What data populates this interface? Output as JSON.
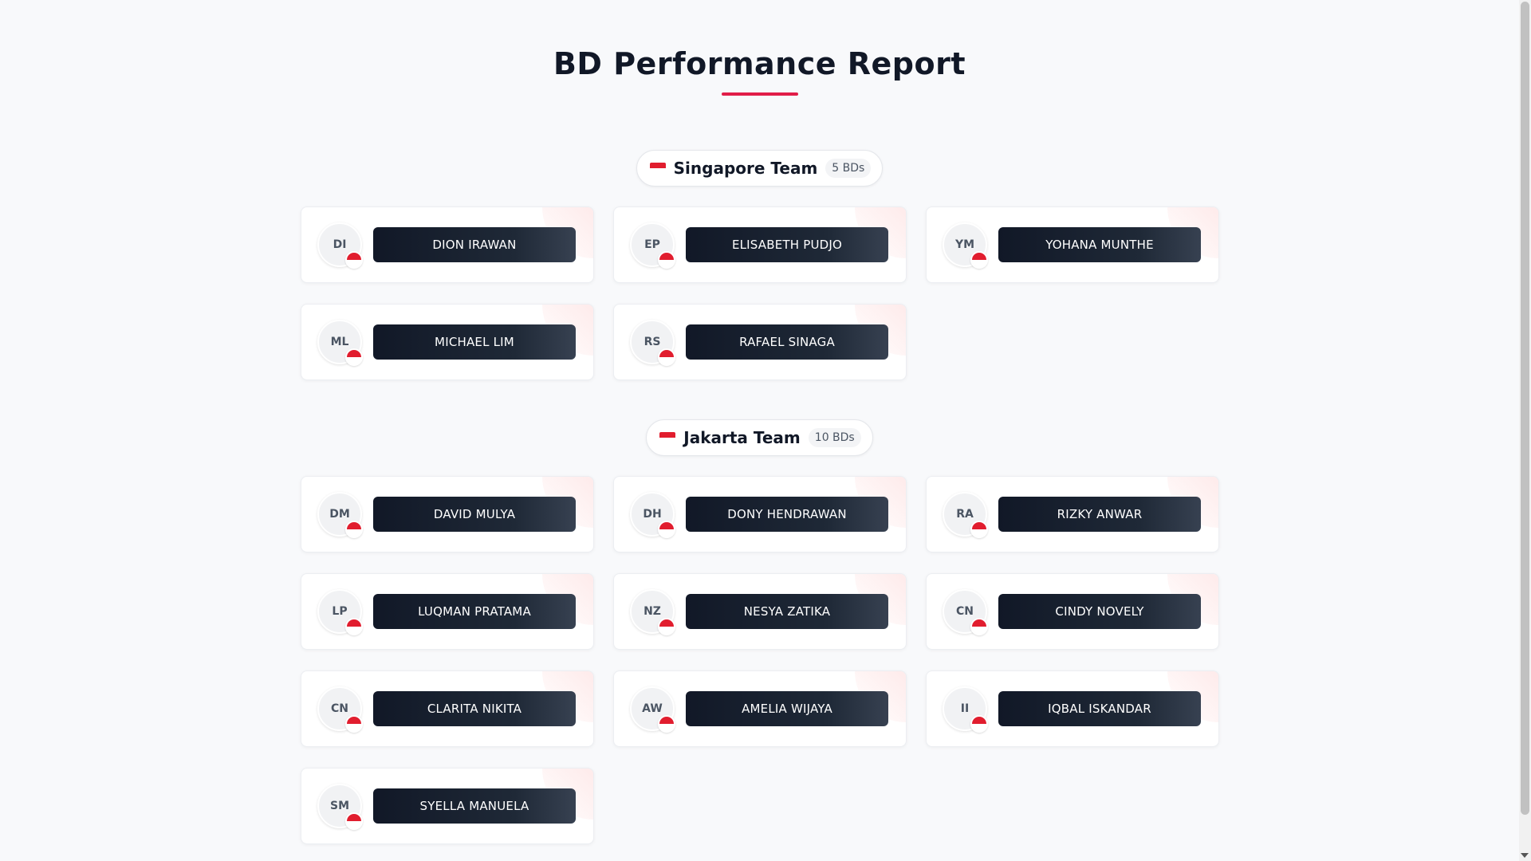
{
  "report": {
    "title": "BD Performance Report"
  },
  "teams": [
    {
      "name": "Singapore Team",
      "count_label": "5 BDs",
      "flag_icon": "singapore-flag-icon",
      "members": [
        {
          "initials": "DI",
          "name": "DION IRAWAN"
        },
        {
          "initials": "EP",
          "name": "ELISABETH PUDJO"
        },
        {
          "initials": "YM",
          "name": "YOHANA MUNTHE"
        },
        {
          "initials": "ML",
          "name": "MICHAEL LIM"
        },
        {
          "initials": "RS",
          "name": "RAFAEL SINAGA"
        }
      ]
    },
    {
      "name": "Jakarta Team",
      "count_label": "10 BDs",
      "flag_icon": "indonesia-flag-icon",
      "members": [
        {
          "initials": "DM",
          "name": "DAVID MULYA"
        },
        {
          "initials": "DH",
          "name": "DONY HENDRAWAN"
        },
        {
          "initials": "RA",
          "name": "RIZKY ANWAR"
        },
        {
          "initials": "LP",
          "name": "LUQMAN PRATAMA"
        },
        {
          "initials": "NZ",
          "name": "NESYA ZATIKA"
        },
        {
          "initials": "CN",
          "name": "CINDY NOVELY"
        },
        {
          "initials": "CN",
          "name": "CLARITA NIKITA"
        },
        {
          "initials": "AW",
          "name": "AMELIA WIJAYA"
        },
        {
          "initials": "II",
          "name": "IQBAL ISKANDAR"
        },
        {
          "initials": "SM",
          "name": "SYELLA MANUELA"
        }
      ]
    }
  ],
  "colors": {
    "accent": "#e11d48",
    "button_dark": "#111827",
    "background": "#f8f9fb"
  }
}
